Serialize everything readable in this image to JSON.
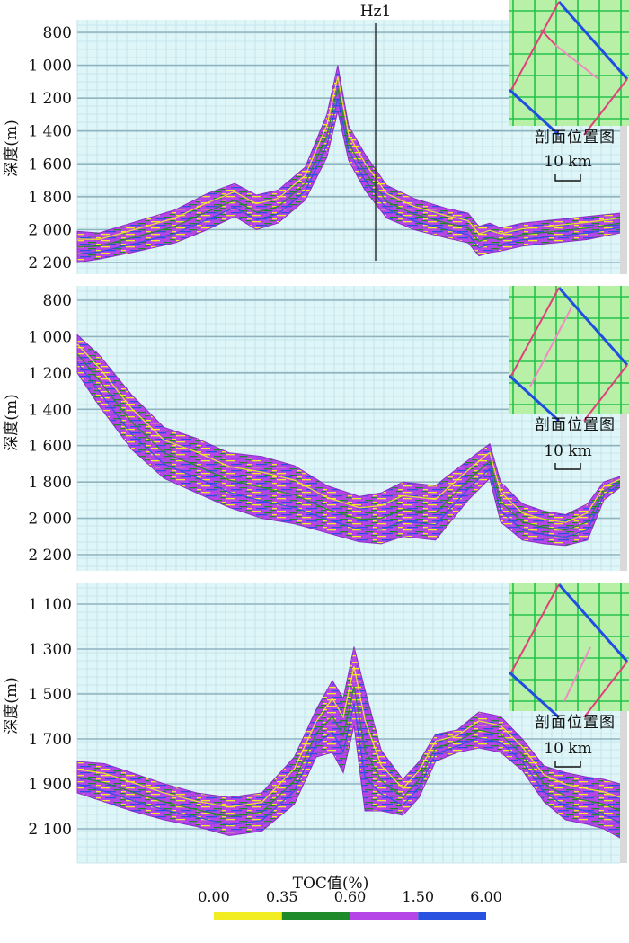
{
  "colors": {
    "panel_bg": "#dff6f8",
    "grid_major": "#8fb4bf",
    "grid_minor": "#bfe0e7",
    "body_main": "#b645e8",
    "body_dark": "#8a2fc4",
    "streak_yellow": "#f2ec22",
    "streak_green": "#1f8a2a",
    "streak_blue": "#2a52e0",
    "inset_bg": "#b8f0a8",
    "inset_grid": "#22c34a",
    "inset_pink": "#e0407a",
    "inset_blue": "#1f4ee0",
    "inset_profile": "#f08ac0",
    "well_line": "#333333"
  },
  "ylabel": "深度(m)",
  "inset_caption": "剖面位置图",
  "inset_scale": "10 km",
  "xlabel": "TOC值(%)",
  "chart_data": [
    {
      "type": "area",
      "panel": 1,
      "ylabel": "深度(m)",
      "yticks": [
        "800",
        "1 000",
        "1 200",
        "1 400",
        "1 600",
        "1 800",
        "2 000",
        "2 200"
      ],
      "ylim": [
        730,
        2300
      ],
      "well": {
        "label": "Hz1",
        "x": 0.5
      },
      "x": [
        0,
        0.04,
        0.1,
        0.18,
        0.24,
        0.29,
        0.33,
        0.37,
        0.42,
        0.46,
        0.48,
        0.5,
        0.53,
        0.57,
        0.62,
        0.68,
        0.72,
        0.74,
        0.76,
        0.78,
        0.82,
        0.88,
        0.94,
        1.0
      ],
      "top_depth": [
        2010,
        2020,
        1960,
        1880,
        1780,
        1720,
        1790,
        1760,
        1620,
        1300,
        1000,
        1370,
        1540,
        1730,
        1810,
        1870,
        1900,
        1980,
        1960,
        1990,
        1960,
        1940,
        1920,
        1900
      ],
      "bottom_depth": [
        2200,
        2180,
        2140,
        2080,
        2000,
        1920,
        2000,
        1960,
        1820,
        1560,
        1280,
        1580,
        1760,
        1930,
        2000,
        2050,
        2080,
        2160,
        2140,
        2130,
        2100,
        2080,
        2060,
        2020
      ]
    },
    {
      "type": "area",
      "panel": 2,
      "ylabel": "深度(m)",
      "yticks": [
        "800",
        "1 000",
        "1 200",
        "1 400",
        "1 600",
        "1 800",
        "2 000",
        "2 200"
      ],
      "ylim": [
        730,
        2300
      ],
      "x": [
        0,
        0.04,
        0.1,
        0.16,
        0.22,
        0.28,
        0.34,
        0.4,
        0.46,
        0.52,
        0.56,
        0.6,
        0.66,
        0.72,
        0.76,
        0.78,
        0.82,
        0.86,
        0.9,
        0.94,
        0.97,
        1.0
      ],
      "top_depth": [
        990,
        1100,
        1320,
        1500,
        1560,
        1640,
        1660,
        1710,
        1820,
        1880,
        1860,
        1800,
        1820,
        1680,
        1590,
        1800,
        1920,
        1960,
        1980,
        1920,
        1800,
        1770
      ],
      "bottom_depth": [
        1200,
        1380,
        1620,
        1780,
        1860,
        1940,
        2000,
        2030,
        2080,
        2130,
        2140,
        2100,
        2120,
        1900,
        1780,
        2020,
        2120,
        2140,
        2150,
        2120,
        1900,
        1830
      ]
    },
    {
      "type": "area",
      "panel": 3,
      "ylabel": "深度(m)",
      "yticks": [
        "1 100",
        "1 300",
        "1 500",
        "1 700",
        "1 900",
        "2 100"
      ],
      "ylim": [
        1010,
        2170
      ],
      "x": [
        0,
        0.05,
        0.1,
        0.16,
        0.22,
        0.28,
        0.34,
        0.4,
        0.44,
        0.47,
        0.49,
        0.51,
        0.53,
        0.56,
        0.6,
        0.63,
        0.66,
        0.7,
        0.74,
        0.78,
        0.82,
        0.86,
        0.9,
        0.94,
        0.97,
        1.0
      ],
      "top_depth": [
        1800,
        1810,
        1850,
        1900,
        1940,
        1960,
        1940,
        1780,
        1570,
        1440,
        1520,
        1290,
        1480,
        1750,
        1880,
        1800,
        1680,
        1660,
        1580,
        1600,
        1700,
        1820,
        1850,
        1870,
        1880,
        1900
      ],
      "bottom_depth": [
        1940,
        1980,
        2020,
        2060,
        2090,
        2130,
        2110,
        1990,
        1780,
        1760,
        1850,
        1640,
        2020,
        2020,
        2040,
        1960,
        1800,
        1760,
        1740,
        1760,
        1840,
        1980,
        2060,
        2080,
        2100,
        2140
      ]
    }
  ],
  "colorbar": {
    "ticks": [
      "0.00",
      "0.35",
      "0.60",
      "1.50",
      "6.00"
    ],
    "segments": [
      "#f2ec22",
      "#1f8a2a",
      "#b645e8",
      "#2a52e0"
    ]
  }
}
